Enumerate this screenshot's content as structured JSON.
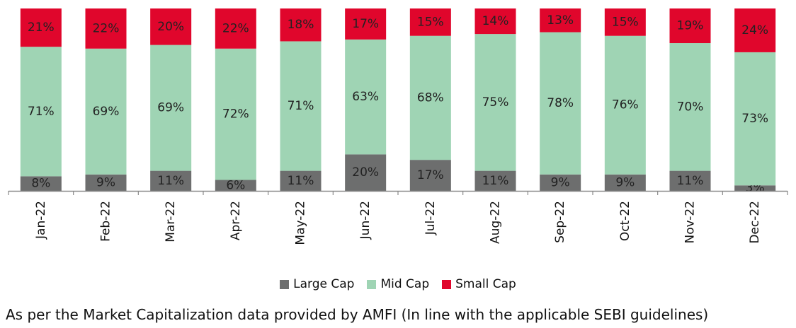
{
  "chart_data": {
    "type": "bar",
    "stacked": true,
    "percent_stacked": true,
    "categories": [
      "Jan-22",
      "Feb-22",
      "Mar-22",
      "Apr-22",
      "May-22",
      "Jun-22",
      "Jul-22",
      "Aug-22",
      "Sep-22",
      "Oct-22",
      "Nov-22",
      "Dec-22"
    ],
    "series": [
      {
        "name": "Large Cap",
        "color": "#6d6e6e",
        "values": [
          8,
          9,
          11,
          6,
          11,
          20,
          17,
          11,
          9,
          9,
          11,
          3
        ]
      },
      {
        "name": "Mid Cap",
        "color": "#9fd4b4",
        "values": [
          71,
          69,
          69,
          72,
          71,
          63,
          68,
          75,
          78,
          76,
          70,
          73
        ]
      },
      {
        "name": "Small Cap",
        "color": "#e0062c",
        "values": [
          21,
          22,
          20,
          22,
          18,
          17,
          15,
          14,
          13,
          15,
          19,
          24
        ]
      }
    ],
    "value_suffix": "%",
    "ylim": [
      0,
      100
    ],
    "grid": false,
    "legend_position": "bottom"
  },
  "footnote": "As per the Market Capitalization data provided by AMFI (In line with the applicable SEBI guidelines)"
}
